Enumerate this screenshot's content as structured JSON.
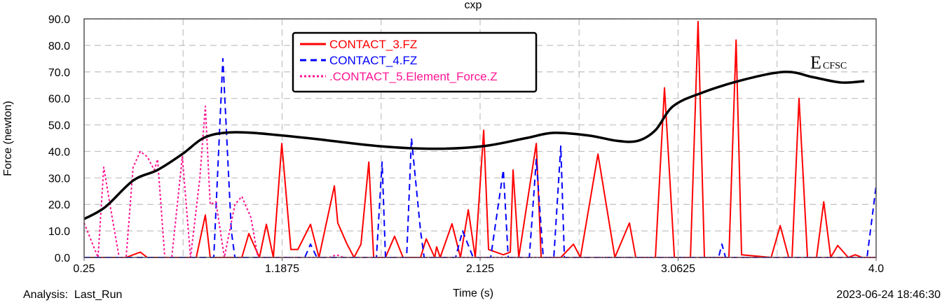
{
  "footer": {
    "analysis": "Analysis:  Last_Run",
    "timestamp": "2023-06-24 18:46:30"
  },
  "colors": {
    "contact3": "#ff0000",
    "contact4": "#0000ff",
    "contact5": "#ff1493",
    "ecfsc": "#000000",
    "grid": "#c0c0c0"
  },
  "chart_data": {
    "type": "line",
    "title": "cxp",
    "xlabel": "Time (s)",
    "ylabel": "Force (newton)",
    "xlim": [
      0.25,
      4.0
    ],
    "ylim": [
      0,
      90
    ],
    "xticks": [
      0.25,
      1.1875,
      2.125,
      3.0625,
      4.0
    ],
    "xtick_labels": [
      "0.25",
      "1.1875",
      "2.125",
      "3.0625",
      "4.0"
    ],
    "yticks": [
      0,
      10,
      20,
      30,
      40,
      50,
      60,
      70,
      80,
      90
    ],
    "ytick_labels": [
      "0.0",
      "10.0",
      "20.0",
      "30.0",
      "40.0",
      "50.0",
      "60.0",
      "70.0",
      "80.0",
      "90.0"
    ],
    "grid": true,
    "legend_position": "top-center",
    "annotation": {
      "main": "E",
      "sub": "CFSC"
    },
    "series": [
      {
        "name": "CONTACT_3.FZ",
        "style": "solid",
        "color": "#ff0000",
        "points": [
          [
            0.25,
            0
          ],
          [
            0.449,
            0
          ],
          [
            0.516,
            2
          ],
          [
            0.549,
            0
          ],
          [
            0.781,
            0
          ],
          [
            0.824,
            16
          ],
          [
            0.847,
            0
          ],
          [
            0.997,
            0
          ],
          [
            1.03,
            9
          ],
          [
            1.08,
            0
          ],
          [
            1.113,
            12.5
          ],
          [
            1.146,
            0
          ],
          [
            1.186,
            43
          ],
          [
            1.229,
            3
          ],
          [
            1.262,
            3
          ],
          [
            1.322,
            12.5
          ],
          [
            1.362,
            0
          ],
          [
            1.435,
            27
          ],
          [
            1.451,
            13
          ],
          [
            1.495,
            5
          ],
          [
            1.528,
            0
          ],
          [
            1.561,
            5
          ],
          [
            1.598,
            36
          ],
          [
            1.621,
            0
          ],
          [
            1.677,
            0
          ],
          [
            1.72,
            8
          ],
          [
            1.76,
            0
          ],
          [
            1.843,
            0
          ],
          [
            1.87,
            7
          ],
          [
            1.91,
            0
          ],
          [
            1.919,
            4
          ],
          [
            1.936,
            0
          ],
          [
            1.992,
            12.7
          ],
          [
            2.032,
            0
          ],
          [
            2.069,
            18
          ],
          [
            2.102,
            0
          ],
          [
            2.142,
            48
          ],
          [
            2.165,
            3
          ],
          [
            2.235,
            1
          ],
          [
            2.268,
            2
          ],
          [
            2.281,
            33
          ],
          [
            2.308,
            0
          ],
          [
            2.391,
            43
          ],
          [
            2.414,
            0
          ],
          [
            2.507,
            0
          ],
          [
            2.567,
            5
          ],
          [
            2.6,
            0
          ],
          [
            2.683,
            39
          ],
          [
            2.763,
            0
          ],
          [
            2.832,
            13
          ],
          [
            2.862,
            0
          ],
          [
            2.955,
            0
          ],
          [
            2.998,
            64
          ],
          [
            3.045,
            0
          ],
          [
            3.121,
            0
          ],
          [
            3.157,
            89
          ],
          [
            3.187,
            0
          ],
          [
            3.303,
            0
          ],
          [
            3.337,
            82
          ],
          [
            3.363,
            1
          ],
          [
            3.503,
            0
          ],
          [
            3.546,
            12
          ],
          [
            3.586,
            0
          ],
          [
            3.602,
            0
          ],
          [
            3.635,
            60
          ],
          [
            3.675,
            0
          ],
          [
            3.718,
            0
          ],
          [
            3.752,
            21
          ],
          [
            3.785,
            0
          ],
          [
            3.818,
            4.5
          ],
          [
            3.868,
            0
          ],
          [
            3.901,
            1
          ],
          [
            3.934,
            0
          ],
          [
            4.0,
            0
          ]
        ]
      },
      {
        "name": "CONTACT_4.FZ",
        "style": "dashed",
        "color": "#0000ff",
        "points": [
          [
            0.25,
            0
          ],
          [
            0.864,
            0
          ],
          [
            0.907,
            75
          ],
          [
            0.947,
            10
          ],
          [
            0.964,
            0
          ],
          [
            1.295,
            0
          ],
          [
            1.322,
            5
          ],
          [
            1.352,
            0
          ],
          [
            1.634,
            0
          ],
          [
            1.661,
            36
          ],
          [
            1.677,
            0
          ],
          [
            1.777,
            0
          ],
          [
            1.8,
            45
          ],
          [
            1.843,
            10
          ],
          [
            1.86,
            0
          ],
          [
            2.009,
            0
          ],
          [
            2.042,
            10
          ],
          [
            2.092,
            0
          ],
          [
            2.175,
            0
          ],
          [
            2.235,
            33
          ],
          [
            2.258,
            0
          ],
          [
            2.358,
            0
          ],
          [
            2.391,
            37
          ],
          [
            2.424,
            0
          ],
          [
            2.474,
            0
          ],
          [
            2.507,
            42
          ],
          [
            2.524,
            0
          ],
          [
            3.254,
            0
          ],
          [
            3.27,
            5
          ],
          [
            3.287,
            0
          ],
          [
            3.957,
            0
          ],
          [
            4.0,
            27
          ]
        ]
      },
      {
        "name": ".CONTACT_5.Element_Force.Z",
        "style": "dotted",
        "color": "#ff1493",
        "points": [
          [
            0.25,
            13
          ],
          [
            0.316,
            0
          ],
          [
            0.343,
            34
          ],
          [
            0.383,
            15
          ],
          [
            0.416,
            0
          ],
          [
            0.449,
            0
          ],
          [
            0.482,
            34
          ],
          [
            0.516,
            40
          ],
          [
            0.549,
            38
          ],
          [
            0.582,
            33
          ],
          [
            0.598,
            37
          ],
          [
            0.632,
            0
          ],
          [
            0.665,
            0
          ],
          [
            0.715,
            38
          ],
          [
            0.754,
            0
          ],
          [
            0.798,
            30
          ],
          [
            0.824,
            57
          ],
          [
            0.847,
            20
          ],
          [
            0.874,
            21
          ],
          [
            0.914,
            0
          ],
          [
            0.964,
            20
          ],
          [
            0.997,
            23
          ],
          [
            1.04,
            15
          ],
          [
            1.073,
            0
          ],
          [
            1.412,
            0
          ],
          [
            1.445,
            1
          ],
          [
            1.478,
            0
          ],
          [
            4.0,
            0
          ]
        ]
      },
      {
        "name": "ECFSC",
        "style": "smooth-bold",
        "color": "#000000",
        "in_legend": false,
        "points": [
          [
            0.25,
            14.5
          ],
          [
            0.35,
            19
          ],
          [
            0.482,
            29
          ],
          [
            0.598,
            33
          ],
          [
            0.715,
            39
          ],
          [
            0.814,
            45
          ],
          [
            0.914,
            47
          ],
          [
            1.047,
            47
          ],
          [
            1.312,
            45
          ],
          [
            1.644,
            42
          ],
          [
            1.91,
            41
          ],
          [
            2.142,
            42
          ],
          [
            2.341,
            45
          ],
          [
            2.474,
            47
          ],
          [
            2.64,
            46
          ],
          [
            2.772,
            44
          ],
          [
            2.872,
            44
          ],
          [
            2.955,
            48
          ],
          [
            3.038,
            57
          ],
          [
            3.171,
            62
          ],
          [
            3.37,
            67
          ],
          [
            3.569,
            70
          ],
          [
            3.702,
            68
          ],
          [
            3.834,
            66
          ],
          [
            3.944,
            66.5
          ]
        ]
      }
    ]
  }
}
